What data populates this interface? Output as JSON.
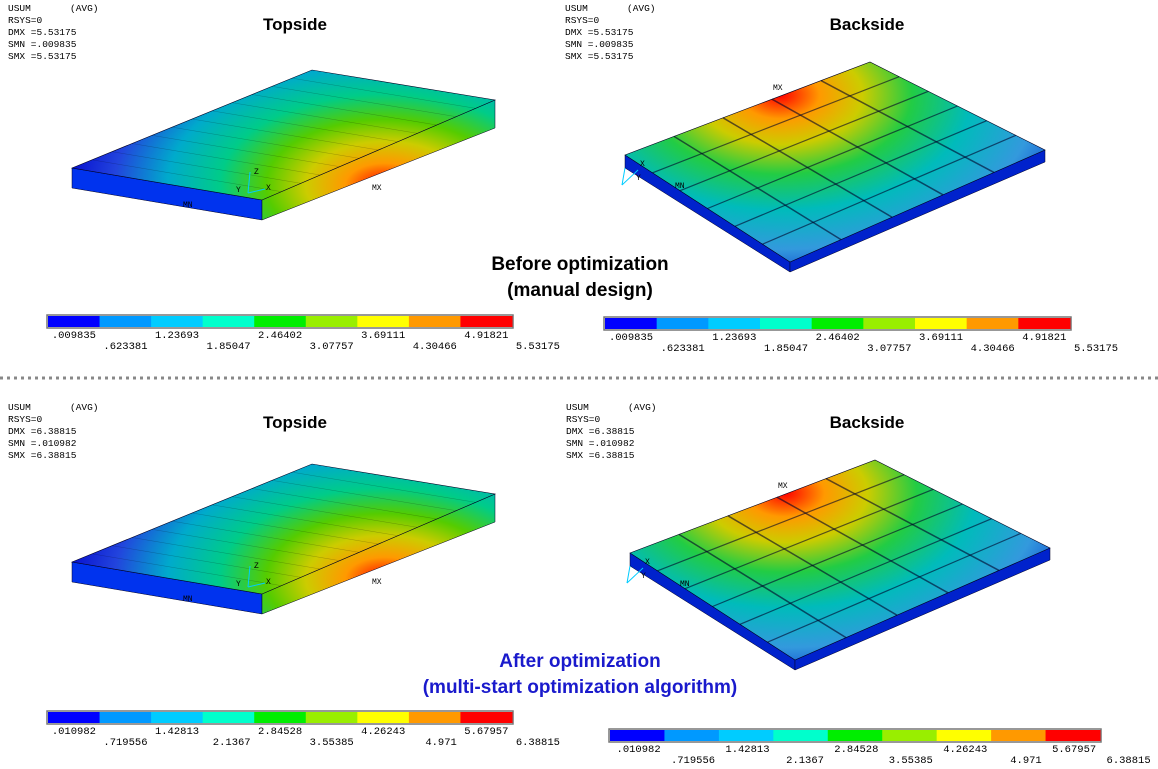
{
  "panels": [
    {
      "header": {
        "quantity": "USUM",
        "average": "(AVG)",
        "rsys": "RSYS=0",
        "dmx": "DMX =5.53175",
        "smn": "SMN =.009835",
        "smx": "SMX =5.53175"
      },
      "title": "Topside",
      "max_label": "MX",
      "min_label": "MN",
      "axes": [
        "X",
        "Y",
        "Z"
      ],
      "colorbar": [
        ".009835",
        ".623381",
        "1.23693",
        "1.85047",
        "2.46402",
        "3.07757",
        "3.69111",
        "4.30466",
        "4.91821",
        "5.53175"
      ]
    },
    {
      "header": {
        "quantity": "USUM",
        "average": "(AVG)",
        "rsys": "RSYS=0",
        "dmx": "DMX =5.53175",
        "smn": "SMN =.009835",
        "smx": "SMX =5.53175"
      },
      "title": "Backside",
      "max_label": "MX",
      "min_label": "MN",
      "axes": [
        "X",
        "Y"
      ],
      "colorbar": [
        ".009835",
        ".623381",
        "1.23693",
        "1.85047",
        "2.46402",
        "3.07757",
        "3.69111",
        "4.30466",
        "4.91821",
        "5.53175"
      ]
    },
    {
      "header": {
        "quantity": "USUM",
        "average": "(AVG)",
        "rsys": "RSYS=0",
        "dmx": "DMX =6.38815",
        "smn": "SMN =.010982",
        "smx": "SMX =6.38815"
      },
      "title": "Topside",
      "max_label": "MX",
      "min_label": "MN",
      "axes": [
        "X",
        "Y",
        "Z"
      ],
      "colorbar": [
        ".010982",
        ".719556",
        "1.42813",
        "2.1367",
        "2.84528",
        "3.55385",
        "4.26243",
        "4.971",
        "5.67957",
        "6.38815"
      ]
    },
    {
      "header": {
        "quantity": "USUM",
        "average": "(AVG)",
        "rsys": "RSYS=0",
        "dmx": "DMX =6.38815",
        "smn": "SMN =.010982",
        "smx": "SMX =6.38815"
      },
      "title": "Backside",
      "max_label": "MX",
      "min_label": "MN",
      "axes": [
        "X",
        "Y"
      ],
      "colorbar": [
        ".010982",
        ".719556",
        "1.42813",
        "2.1367",
        "2.84528",
        "3.55385",
        "4.26243",
        "4.971",
        "5.67957",
        "6.38815"
      ]
    }
  ],
  "captions": [
    {
      "line1": "Before optimization",
      "line2": "(manual design)"
    },
    {
      "line1": "After optimization",
      "line2": "(multi-start optimization algorithm)"
    }
  ]
}
